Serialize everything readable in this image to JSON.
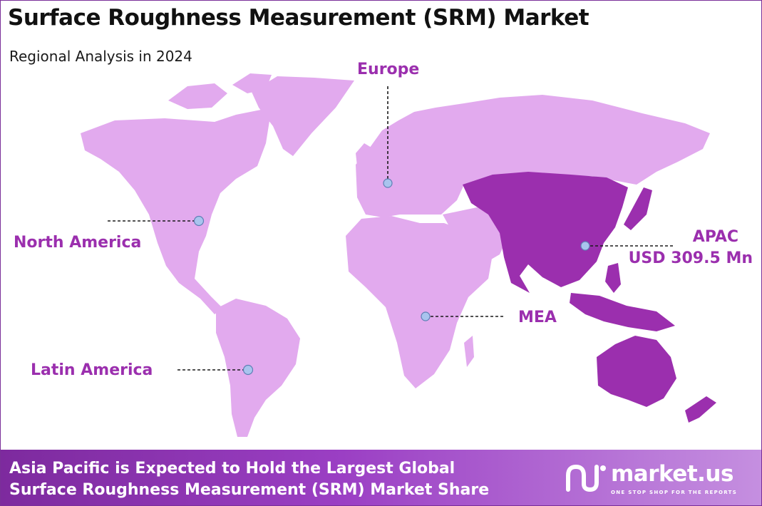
{
  "title": "Surface Roughness Measurement (SRM) Market",
  "subtitle": "Regional Analysis in 2024",
  "colors": {
    "land_default": "#e2aaee",
    "land_highlight": "#9b2fae",
    "accent_text": "#9b2fae",
    "marker": "#a9c4ee",
    "footer_from": "#7d2a9e",
    "footer_to": "#c58fe0"
  },
  "regions": [
    {
      "name": "North America",
      "highlighted": false
    },
    {
      "name": "Europe",
      "highlighted": false
    },
    {
      "name": "APAC",
      "value": "USD 309.5 Mn",
      "highlighted": true
    },
    {
      "name": "MEA",
      "highlighted": false
    },
    {
      "name": "Latin America",
      "highlighted": false
    }
  ],
  "footer": {
    "line1": "Asia Pacific is Expected to Hold the Largest Global",
    "line2": "Surface Roughness Measurement (SRM) Market Share"
  },
  "logo": {
    "icon": "market-us-logo-icon",
    "name": "market.us",
    "tagline": "ONE STOP SHOP FOR THE REPORTS"
  }
}
